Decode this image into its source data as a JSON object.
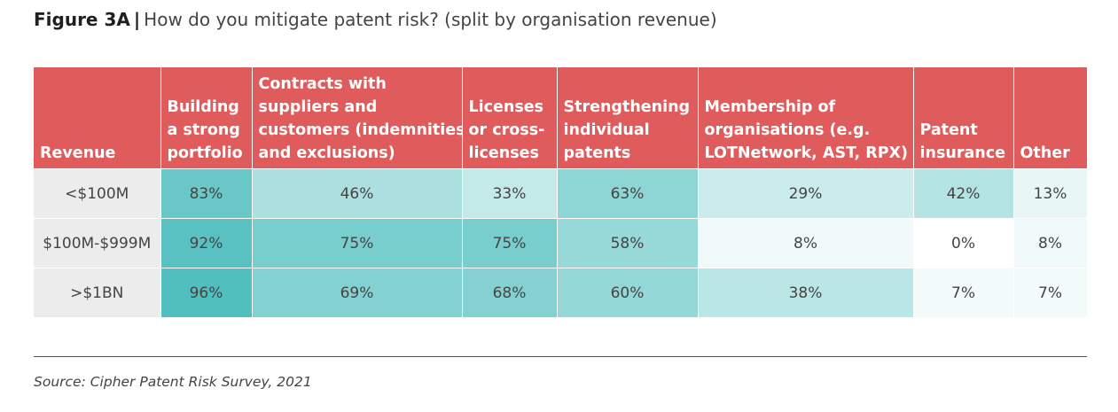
{
  "title": {
    "figure": "Figure 3A",
    "separator": "|",
    "question": "How do you mitigate patent risk? (split by organisation revenue)"
  },
  "colors": {
    "header_bg": "#e05b5b",
    "revenue_cell_bg": "#ececec",
    "scale_low": "#ffffff",
    "scale_high": "#4bbcbc"
  },
  "source": "Source: Cipher Patent Risk Survey, 2021",
  "chart_data": {
    "type": "heatmap",
    "row_header": "Revenue",
    "columns": [
      [
        "Building",
        "a strong",
        "portfolio"
      ],
      [
        "Contracts with",
        "suppliers and",
        "customers (indemnities",
        "and exclusions)"
      ],
      [
        "Licenses",
        "or cross-",
        "licenses"
      ],
      [
        "Strengthening",
        "individual",
        "patents"
      ],
      [
        "Membership of",
        "organisations (e.g.",
        "LOTNetwork, AST, RPX)"
      ],
      [
        "Patent",
        "insurance"
      ],
      [
        "Other"
      ]
    ],
    "rows": [
      {
        "label": "<$100M",
        "values": [
          83,
          46,
          33,
          63,
          29,
          42,
          13
        ],
        "text": [
          "83%",
          "46%",
          "33%",
          "63%",
          "29%",
          "42%",
          "13%"
        ]
      },
      {
        "label": "$100M-$999M",
        "values": [
          92,
          75,
          75,
          58,
          8,
          0,
          8
        ],
        "text": [
          "92%",
          "75%",
          "75%",
          "58%",
          "8%",
          "0%",
          "8%"
        ]
      },
      {
        "label": ">$1BN",
        "values": [
          96,
          69,
          68,
          60,
          38,
          7,
          7
        ],
        "text": [
          "96%",
          "69%",
          "68%",
          "60%",
          "38%",
          "7%",
          "7%"
        ]
      }
    ],
    "value_range": [
      0,
      100
    ]
  }
}
